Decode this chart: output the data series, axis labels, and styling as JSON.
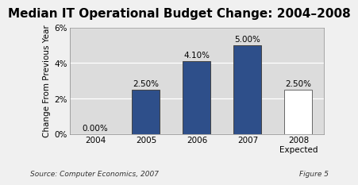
{
  "title": "Median IT Operational Budget Change: 2004–2008",
  "categories": [
    "2004",
    "2005",
    "2006",
    "2007",
    "2008\nExpected"
  ],
  "values": [
    0.0,
    2.5,
    4.1,
    5.0,
    2.5
  ],
  "labels": [
    "0.00%",
    "2.50%",
    "4.10%",
    "5.00%",
    "2.50%"
  ],
  "bar_colors": [
    "#2E4F8A",
    "#2E4F8A",
    "#2E4F8A",
    "#2E4F8A",
    "#FFFFFF"
  ],
  "bar_edgecolors": [
    "#444444",
    "#444444",
    "#444444",
    "#444444",
    "#666666"
  ],
  "ylabel": "Change From Previous Year",
  "ylim": [
    0,
    6
  ],
  "yticks": [
    0,
    2,
    4,
    6
  ],
  "ytick_labels": [
    "0%",
    "2%",
    "4%",
    "6%"
  ],
  "plot_bg": "#DCDCDC",
  "fig_bg": "#F0F0F0",
  "title_fontsize": 11,
  "axis_fontsize": 7.5,
  "label_fontsize": 7.5,
  "ylabel_fontsize": 7.5,
  "source_text": "Source: Computer Economics, 2007",
  "figure_text": "Figure 5"
}
